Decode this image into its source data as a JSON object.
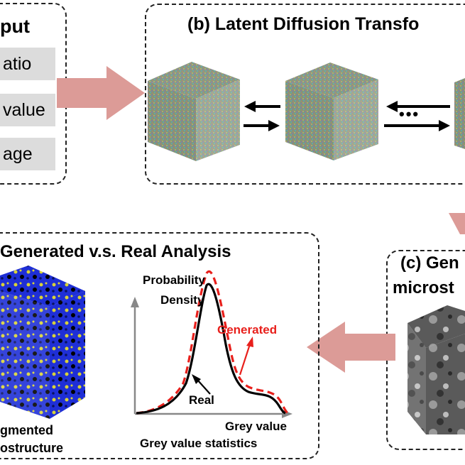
{
  "panel_a": {
    "title": "put",
    "inputs": [
      "atio",
      "value",
      "age"
    ]
  },
  "panel_b": {
    "title": "(b)  Latent Diffusion Transfo",
    "ellipsis": "•••"
  },
  "panel_c": {
    "title_line1": "(c) Gen",
    "title_line2": "microst"
  },
  "panel_d": {
    "title": "Generated v.s. Real Analysis",
    "cube_label_line1": "gmented",
    "cube_label_line2": "ostructure",
    "chart_caption": "Grey value statistics"
  },
  "chart_data": {
    "type": "line",
    "ylabel_line1": "Probability",
    "ylabel_line2": "Density",
    "xlabel": "Grey value",
    "series": [
      {
        "name": "Generated",
        "color": "#e8201c",
        "style": "dashed"
      },
      {
        "name": "Real",
        "color": "#000000",
        "style": "solid"
      }
    ]
  },
  "colors": {
    "arrow": "#dc9b97",
    "dashed_border": "#222222",
    "input_box": "#dcdcdc",
    "generated": "#e8201c"
  }
}
